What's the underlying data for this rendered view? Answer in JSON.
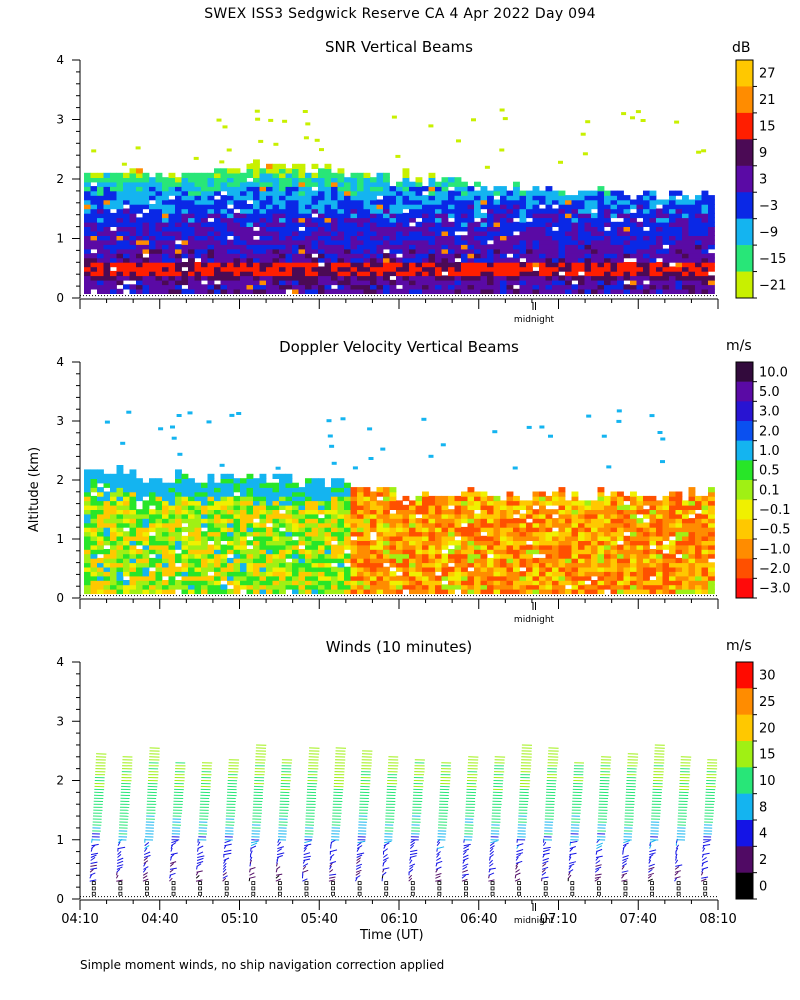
{
  "figure_title": "SWEX ISS3 Sedgwick Reserve CA    4 Apr 2022 Day 094",
  "ylabel": "Altitude (km)",
  "xlabel": "Time (UT)",
  "footnote": "Simple moment winds, no ship navigation correction applied",
  "chart_data": [
    {
      "type": "heatmap",
      "title": "SNR Vertical Beams",
      "xlabel": "Time (UT)",
      "ylabel": "Altitude (km)",
      "ylim": [
        0,
        4
      ],
      "yticks": [
        "0",
        "1",
        "2",
        "3",
        "4"
      ],
      "annotation": "midnight",
      "colorbar": {
        "unit": "dB",
        "labels": [
          "27",
          "21",
          "15",
          "9",
          "3",
          "−3",
          "−9",
          "−15",
          "−21"
        ],
        "colors": [
          "#ffc800",
          "#ff8c00",
          "#ff1e00",
          "#4b0a55",
          "#5a0aa5",
          "#0a28e6",
          "#14b4f0",
          "#28e678",
          "#c8f000"
        ]
      },
      "data": {
        "levels_dB": [
          -21,
          -15,
          -9,
          -3,
          3,
          9,
          15,
          21,
          27
        ],
        "profile_by_altitude_km": [
          {
            "altitude_km": 0.2,
            "snr_dB": 3
          },
          {
            "altitude_km": 0.4,
            "snr_dB": 9
          },
          {
            "altitude_km": 0.6,
            "snr_dB": 3
          },
          {
            "altitude_km": 1.0,
            "snr_dB": 0
          },
          {
            "altitude_km": 1.4,
            "snr_dB": -3
          },
          {
            "altitude_km": 1.8,
            "snr_dB": -9
          },
          {
            "altitude_km": 2.0,
            "snr_dB": -15
          },
          {
            "altitude_km": 2.2,
            "snr_dB": -21
          }
        ],
        "echo_top_km": [
          {
            "time": "04:10",
            "top_km": 2.0
          },
          {
            "time": "05:10",
            "top_km": 2.2
          },
          {
            "time": "06:10",
            "top_km": 2.0
          },
          {
            "time": "07:10",
            "top_km": 1.8
          },
          {
            "time": "08:10",
            "top_km": 1.7
          }
        ]
      }
    },
    {
      "type": "heatmap",
      "title": "Doppler Velocity Vertical Beams",
      "xlabel": "Time (UT)",
      "ylabel": "Altitude (km)",
      "ylim": [
        0,
        4
      ],
      "yticks": [
        "0",
        "1",
        "2",
        "3",
        "4"
      ],
      "annotation": "midnight",
      "colorbar": {
        "unit": "m/s",
        "labels": [
          "10.0",
          "5.0",
          "3.0",
          "2.0",
          "1.0",
          "0.5",
          "0.1",
          "−0.1",
          "−0.5",
          "−1.0",
          "−2.0",
          "−3.0"
        ],
        "colors": [
          "#320a3c",
          "#5a0aa5",
          "#2814d2",
          "#0a50f0",
          "#14b4f0",
          "#28e628",
          "#a0f014",
          "#f0f000",
          "#ffc800",
          "#ff8c00",
          "#ff5000",
          "#ff0a0a"
        ]
      },
      "data": {
        "regime": [
          {
            "time_start": "04:10",
            "time_end": "05:50",
            "typical_velocity_ms": 0.3
          },
          {
            "time_start": "05:50",
            "time_end": "08:10",
            "typical_velocity_ms": -0.6
          }
        ],
        "echo_top_km": [
          {
            "time": "04:10",
            "top_km": 2.1
          },
          {
            "time": "05:50",
            "top_km": 1.9
          },
          {
            "time": "06:10",
            "top_km": 1.7
          },
          {
            "time": "08:10",
            "top_km": 1.75
          }
        ]
      }
    },
    {
      "type": "scatter",
      "title": "Winds (10 minutes)",
      "xlabel": "Time (UT)",
      "ylabel": "Altitude (km)",
      "ylim": [
        0,
        4
      ],
      "yticks": [
        "0",
        "1",
        "2",
        "3",
        "4"
      ],
      "xticks": [
        "04:10",
        "04:40",
        "05:10",
        "05:40",
        "06:10",
        "06:40",
        "07:10",
        "07:40",
        "08:10"
      ],
      "annotation": "midnight",
      "colorbar": {
        "unit": "m/s",
        "labels": [
          "30",
          "25",
          "20",
          "15",
          "10",
          "8",
          "4",
          "2",
          "0"
        ],
        "colors": [
          "#ff0a00",
          "#ff8c00",
          "#ffc800",
          "#a0f014",
          "#28e678",
          "#14b4f0",
          "#1414e6",
          "#500a64",
          "#000000"
        ]
      },
      "data": {
        "profile_times_utc": [
          "04:15",
          "04:25",
          "04:35",
          "04:45",
          "04:55",
          "05:05",
          "05:15",
          "05:25",
          "05:35",
          "05:45",
          "05:55",
          "06:05",
          "06:15",
          "06:25",
          "06:35",
          "06:45",
          "06:55",
          "07:05",
          "07:15",
          "07:25",
          "07:35",
          "07:45",
          "07:55",
          "08:05"
        ],
        "speed_by_altitude": [
          {
            "altitude_km": 0.3,
            "speed_ms": 3
          },
          {
            "altitude_km": 0.6,
            "speed_ms": 5
          },
          {
            "altitude_km": 1.0,
            "speed_ms": 8
          },
          {
            "altitude_km": 1.5,
            "speed_ms": 12
          },
          {
            "altitude_km": 2.0,
            "speed_ms": 15
          },
          {
            "altitude_km": 2.5,
            "speed_ms": 17
          }
        ]
      }
    }
  ]
}
